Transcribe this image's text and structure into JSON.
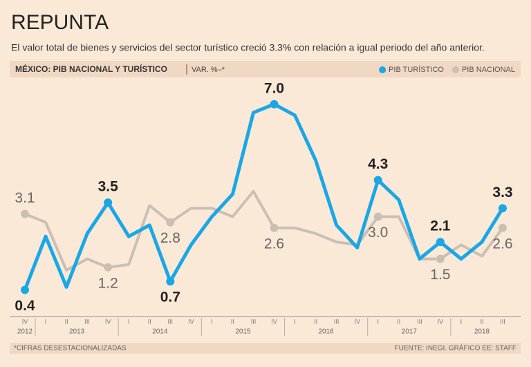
{
  "chart_data": {
    "type": "line",
    "title": "REPUNTA",
    "subtitle": "El valor total de bienes y servicios del sector turístico creció 3.3% con relación a igual periodo del año anterior.",
    "header": "MÉXICO: PIB NACIONAL Y TURÍSTICO",
    "y_label": "VAR. %–*",
    "footnote": "*CIFRAS DESESTACIONALIZADAS",
    "source": "FUENTE: INEGI. GRÁFICO EE: STAFF",
    "categories": [
      "IV",
      "I",
      "II",
      "III",
      "IV",
      "I",
      "II",
      "III",
      "IV",
      "I",
      "II",
      "III",
      "IV",
      "I",
      "II",
      "III",
      "IV",
      "I",
      "II",
      "III",
      "IV",
      "I",
      "II",
      "III"
    ],
    "years": [
      "2012",
      "2013",
      "2014",
      "2015",
      "2016",
      "2017",
      "2018"
    ],
    "ylim": [
      -0.5,
      8
    ],
    "series": [
      {
        "name": "PIB TURÍSTICO",
        "color": "#1aa7e6",
        "values": [
          0.4,
          2.3,
          0.5,
          2.4,
          3.5,
          2.3,
          2.7,
          0.7,
          2.0,
          3.0,
          3.8,
          6.7,
          7.0,
          6.6,
          5.0,
          2.7,
          1.9,
          4.3,
          3.6,
          1.5,
          2.1,
          1.5,
          2.1,
          3.3
        ],
        "value_labels": [
          "0.4",
          null,
          null,
          null,
          "3.5",
          null,
          null,
          "0.7",
          null,
          null,
          null,
          null,
          "7.0",
          null,
          null,
          null,
          null,
          "4.3",
          null,
          null,
          "2.1",
          null,
          null,
          "3.3"
        ]
      },
      {
        "name": "PIB NACIONAL",
        "color": "#cbbfb4",
        "values": [
          3.1,
          2.8,
          1.1,
          1.5,
          1.2,
          1.3,
          3.4,
          2.8,
          3.3,
          3.3,
          3.0,
          3.9,
          2.6,
          2.6,
          2.4,
          2.1,
          2.0,
          3.0,
          3.0,
          1.5,
          1.5,
          2.0,
          1.6,
          2.6
        ],
        "value_labels": [
          "3.1",
          null,
          null,
          null,
          "1.2",
          null,
          null,
          "2.8",
          null,
          null,
          null,
          null,
          "2.6",
          null,
          null,
          null,
          null,
          "3.0",
          null,
          null,
          "1.5",
          null,
          null,
          "2.6"
        ]
      }
    ]
  }
}
